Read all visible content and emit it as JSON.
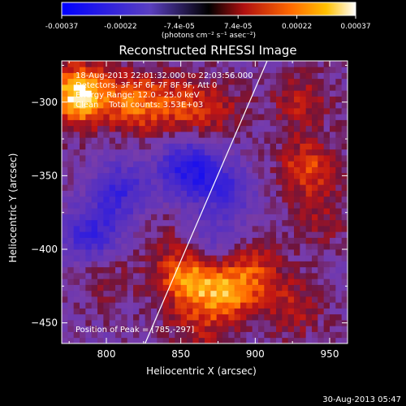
{
  "chart_data": {
    "type": "heatmap",
    "title": "Reconstructed RHESSI Image",
    "xlabel": "Heliocentric X (arcsec)",
    "ylabel": "Heliocentric Y (arcsec)",
    "xlim": [
      770,
      962
    ],
    "ylim": [
      -464,
      -272
    ],
    "x_ticks": [
      800,
      850,
      900,
      950
    ],
    "y_ticks": [
      -300,
      -350,
      -400,
      -450
    ],
    "colorbar": {
      "ticks": [
        "-0.00037",
        "-0.00022",
        "-7.4e-05",
        "7.4e-05",
        "0.00022",
        "0.00037"
      ],
      "label": "(photons cm⁻² s⁻¹ asec⁻²)",
      "range": [
        -0.00037,
        0.00037
      ]
    },
    "annotations": {
      "time_range": "18-Aug-2013 22:01:32.000 to 22:03:56.000",
      "detectors": "Detectors: 3F 5F 6F 7F 8F 9F, Att 0",
      "energy": "Energy Range: 12.0 - 25.0 keV",
      "method": "Clean    Total counts: 3.53E+03",
      "peak": "Position of Peak = [785,-297]"
    },
    "limb_line": {
      "x": [
        826,
        908
      ],
      "y": [
        -464,
        -272
      ]
    },
    "sources": [
      {
        "x": 782,
        "y": -295,
        "intensity": 0.00037
      },
      {
        "x": 820,
        "y": -300,
        "intensity": 0.00022
      },
      {
        "x": 850,
        "y": -302,
        "intensity": 0.00015
      },
      {
        "x": 875,
        "y": -305,
        "intensity": 0.0001
      },
      {
        "x": 935,
        "y": -345,
        "intensity": 0.00018
      },
      {
        "x": 930,
        "y": -300,
        "intensity": 0.00012
      },
      {
        "x": 945,
        "y": -380,
        "intensity": 8e-05
      },
      {
        "x": 855,
        "y": -420,
        "intensity": 0.00025
      },
      {
        "x": 880,
        "y": -430,
        "intensity": 0.00022
      },
      {
        "x": 900,
        "y": -415,
        "intensity": 0.00015
      },
      {
        "x": 925,
        "y": -440,
        "intensity": 0.00012
      },
      {
        "x": 800,
        "y": -420,
        "intensity": 8e-05
      },
      {
        "x": 860,
        "y": -455,
        "intensity": 0.0001
      },
      {
        "x": 840,
        "y": -395,
        "intensity": 6e-05
      },
      {
        "x": 855,
        "y": -345,
        "intensity": -0.00025
      },
      {
        "x": 880,
        "y": -360,
        "intensity": -0.00015
      },
      {
        "x": 810,
        "y": -360,
        "intensity": -0.00018
      },
      {
        "x": 790,
        "y": -390,
        "intensity": -0.0002
      },
      {
        "x": 870,
        "y": -395,
        "intensity": -0.0001
      }
    ]
  },
  "footer": {
    "date": "30-Aug-2013 05:47"
  }
}
